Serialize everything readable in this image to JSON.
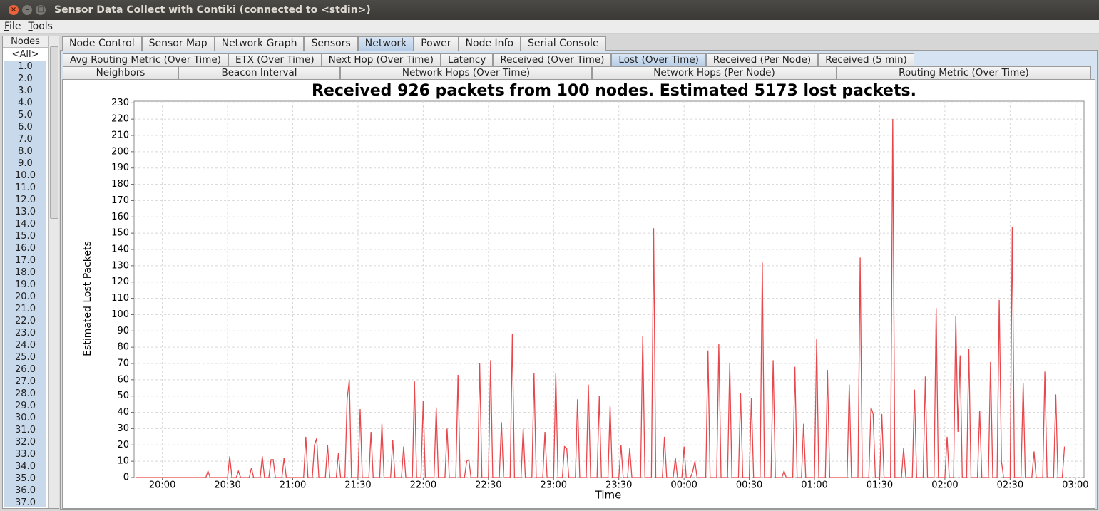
{
  "window": {
    "title": "Sensor Data Collect with Contiki (connected to <stdin>)"
  },
  "menu": [
    "File",
    "Tools"
  ],
  "nodes": {
    "header": "Nodes",
    "items": [
      "<All>",
      "1.0",
      "2.0",
      "3.0",
      "4.0",
      "5.0",
      "6.0",
      "7.0",
      "8.0",
      "9.0",
      "10.0",
      "11.0",
      "12.0",
      "13.0",
      "14.0",
      "15.0",
      "16.0",
      "17.0",
      "18.0",
      "19.0",
      "20.0",
      "21.0",
      "22.0",
      "23.0",
      "24.0",
      "25.0",
      "26.0",
      "27.0",
      "28.0",
      "29.0",
      "30.0",
      "31.0",
      "32.0",
      "33.0",
      "34.0",
      "35.0",
      "36.0",
      "37.0"
    ],
    "selected": 0
  },
  "tabs": {
    "items": [
      "Node Control",
      "Sensor Map",
      "Network Graph",
      "Sensors",
      "Network",
      "Power",
      "Node Info",
      "Serial Console"
    ],
    "active": 4
  },
  "subtabs": {
    "row1": [
      "Avg Routing Metric (Over Time)",
      "ETX (Over Time)",
      "Next Hop (Over Time)",
      "Latency",
      "Received (Over Time)",
      "Lost (Over Time)",
      "Received (Per Node)",
      "Received (5 min)"
    ],
    "row2": [
      "Neighbors",
      "Beacon Interval",
      "Network Hops (Over Time)",
      "Network Hops (Per Node)",
      "Routing Metric (Over Time)"
    ],
    "active_row1": 5
  },
  "chart_data": {
    "type": "line",
    "title": "Received 926 packets from 100 nodes. Estimated 5173 lost packets.",
    "x_label": "Time",
    "y_label": "Estimated Lost Packets",
    "color": "#e8474b",
    "grid": true,
    "xlim": [
      "19:47",
      "03:04"
    ],
    "ylim": [
      0,
      231
    ],
    "xticks": [
      "20:00",
      "20:30",
      "21:00",
      "21:30",
      "22:00",
      "22:30",
      "23:00",
      "23:30",
      "00:00",
      "00:30",
      "01:00",
      "01:30",
      "02:00",
      "02:30",
      "03:00"
    ],
    "yticks": [
      0,
      10,
      20,
      30,
      40,
      50,
      60,
      70,
      80,
      90,
      100,
      110,
      120,
      130,
      140,
      150,
      160,
      170,
      180,
      190,
      200,
      210,
      220,
      230
    ],
    "x": [
      "19:48",
      "20:20",
      "20:21",
      "20:22",
      "20:30",
      "20:31",
      "20:32",
      "20:34",
      "20:35",
      "20:36",
      "20:40",
      "20:41",
      "20:42",
      "20:45",
      "20:46",
      "20:47",
      "20:49",
      "20:50",
      "20:51",
      "20:52",
      "20:55",
      "20:56",
      "20:57",
      "21:05",
      "21:06",
      "21:07",
      "21:09",
      "21:10",
      "21:11",
      "21:12",
      "21:15",
      "21:16",
      "21:17",
      "21:20",
      "21:21",
      "21:22",
      "21:24",
      "21:25",
      "21:26",
      "21:27",
      "21:30",
      "21:31",
      "21:32",
      "21:35",
      "21:36",
      "21:37",
      "21:40",
      "21:41",
      "21:42",
      "21:45",
      "21:46",
      "21:47",
      "21:50",
      "21:51",
      "21:52",
      "21:55",
      "21:56",
      "21:57",
      "21:59",
      "22:00",
      "22:01",
      "22:05",
      "22:06",
      "22:07",
      "22:10",
      "22:11",
      "22:12",
      "22:15",
      "22:16",
      "22:17",
      "22:19",
      "22:20",
      "22:21",
      "22:22",
      "22:25",
      "22:26",
      "22:27",
      "22:30",
      "22:31",
      "22:32",
      "22:35",
      "22:36",
      "22:37",
      "22:40",
      "22:41",
      "22:42",
      "22:45",
      "22:46",
      "22:47",
      "22:50",
      "22:51",
      "22:52",
      "22:55",
      "22:56",
      "22:57",
      "23:00",
      "23:01",
      "23:02",
      "23:04",
      "23:05",
      "23:06",
      "23:07",
      "23:10",
      "23:11",
      "23:12",
      "23:15",
      "23:16",
      "23:17",
      "23:20",
      "23:21",
      "23:22",
      "23:25",
      "23:26",
      "23:27",
      "23:30",
      "23:31",
      "23:32",
      "23:34",
      "23:35",
      "23:36",
      "23:40",
      "23:41",
      "23:42",
      "23:45",
      "23:46",
      "23:47",
      "23:50",
      "23:51",
      "23:52",
      "23:55",
      "23:56",
      "23:57",
      "23:59",
      "00:00",
      "00:01",
      "00:03",
      "00:04",
      "00:05",
      "00:06",
      "00:10",
      "00:11",
      "00:12",
      "00:15",
      "00:16",
      "00:17",
      "00:20",
      "00:21",
      "00:22",
      "00:25",
      "00:26",
      "00:27",
      "00:30",
      "00:31",
      "00:32",
      "00:35",
      "00:36",
      "00:37",
      "00:40",
      "00:41",
      "00:42",
      "00:45",
      "00:46",
      "00:47",
      "00:50",
      "00:51",
      "00:52",
      "00:54",
      "00:55",
      "00:56",
      "01:00",
      "01:01",
      "01:02",
      "01:05",
      "01:06",
      "01:07",
      "01:15",
      "01:16",
      "01:17",
      "01:20",
      "01:21",
      "01:22",
      "01:25",
      "01:26",
      "01:27",
      "01:28",
      "01:30",
      "01:31",
      "01:32",
      "01:35",
      "01:36",
      "01:37",
      "01:40",
      "01:41",
      "01:42",
      "01:45",
      "01:46",
      "01:47",
      "01:50",
      "01:51",
      "01:52",
      "01:55",
      "01:56",
      "01:57",
      "02:00",
      "02:01",
      "02:02",
      "02:04",
      "02:05",
      "02:06",
      "02:07",
      "02:08",
      "02:10",
      "02:11",
      "02:12",
      "02:15",
      "02:16",
      "02:17",
      "02:20",
      "02:21",
      "02:22",
      "02:24",
      "02:25",
      "02:26",
      "02:27",
      "02:30",
      "02:31",
      "02:32",
      "02:35",
      "02:36",
      "02:37",
      "02:40",
      "02:41",
      "02:42",
      "02:45",
      "02:46",
      "02:47",
      "02:50",
      "02:51",
      "02:52",
      "02:54",
      "02:55"
    ],
    "values": [
      0,
      0,
      4,
      0,
      0,
      13,
      0,
      0,
      4,
      0,
      0,
      6,
      0,
      0,
      13,
      0,
      0,
      11,
      11,
      0,
      0,
      12,
      0,
      0,
      25,
      0,
      0,
      20,
      24,
      0,
      0,
      20,
      0,
      0,
      15,
      0,
      0,
      48,
      60,
      0,
      0,
      42,
      0,
      0,
      28,
      0,
      0,
      33,
      0,
      0,
      23,
      0,
      0,
      19,
      0,
      0,
      59,
      0,
      0,
      47,
      0,
      0,
      43,
      0,
      0,
      30,
      0,
      0,
      63,
      0,
      0,
      10,
      11,
      0,
      0,
      70,
      0,
      0,
      72,
      0,
      0,
      34,
      0,
      0,
      88,
      0,
      0,
      30,
      0,
      0,
      64,
      0,
      0,
      28,
      0,
      0,
      64,
      0,
      0,
      19,
      18,
      0,
      0,
      48,
      0,
      0,
      57,
      0,
      0,
      50,
      0,
      0,
      44,
      0,
      0,
      20,
      0,
      0,
      18,
      0,
      0,
      87,
      0,
      0,
      153,
      0,
      0,
      25,
      0,
      0,
      12,
      0,
      0,
      19,
      0,
      0,
      4,
      10,
      0,
      0,
      78,
      0,
      0,
      82,
      0,
      0,
      70,
      0,
      0,
      52,
      0,
      0,
      49,
      0,
      0,
      132,
      0,
      0,
      72,
      0,
      0,
      4,
      0,
      0,
      68,
      0,
      0,
      33,
      0,
      0,
      85,
      0,
      0,
      66,
      0,
      0,
      57,
      0,
      0,
      135,
      0,
      0,
      43,
      39,
      0,
      0,
      39,
      0,
      0,
      220,
      0,
      0,
      18,
      0,
      0,
      54,
      0,
      0,
      62,
      0,
      0,
      104,
      0,
      0,
      25,
      0,
      0,
      99,
      28,
      75,
      0,
      0,
      79,
      0,
      0,
      41,
      0,
      0,
      71,
      0,
      0,
      109,
      10,
      0,
      0,
      154,
      0,
      0,
      58,
      0,
      0,
      16,
      0,
      0,
      65,
      0,
      0,
      51,
      0,
      0,
      19
    ]
  }
}
